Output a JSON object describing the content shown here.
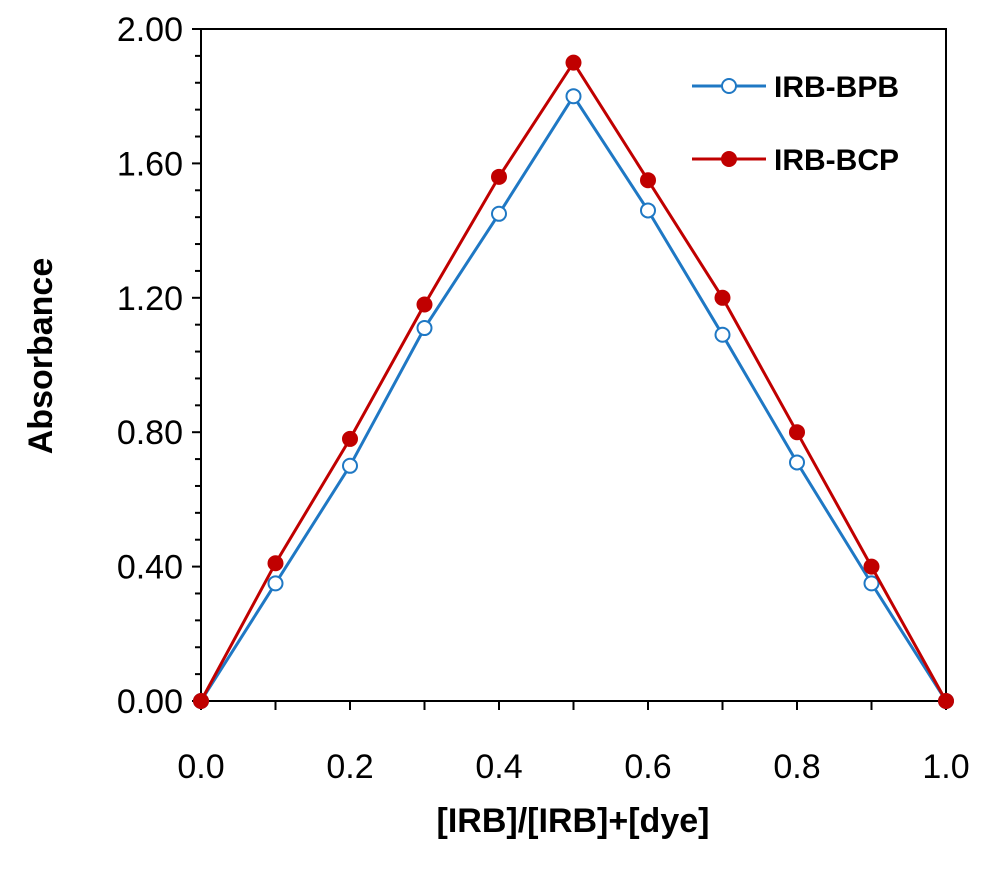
{
  "chart_data": {
    "type": "line",
    "title": "",
    "xlabel": "[IRB]/[IRB]+[dye]",
    "ylabel": "Absorbance",
    "xlim": [
      0,
      1
    ],
    "ylim": [
      0,
      2
    ],
    "x_ticks": [
      0.0,
      0.2,
      0.4,
      0.6,
      0.8,
      1.0
    ],
    "x_tick_labels": [
      "0.0",
      "0.2",
      "0.4",
      "0.6",
      "0.8",
      "1.0"
    ],
    "y_ticks": [
      0,
      0.4,
      0.8,
      1.2,
      1.6,
      2.0
    ],
    "y_tick_labels": [
      "0.00",
      "0.40",
      "0.80",
      "1.20",
      "1.60",
      "2.00"
    ],
    "grid": false,
    "legend_position": "top-right",
    "x": [
      0.0,
      0.1,
      0.2,
      0.3,
      0.4,
      0.5,
      0.6,
      0.7,
      0.8,
      0.9,
      1.0
    ],
    "series": [
      {
        "name": "IRB-BPB",
        "color": "#1f78c4",
        "marker": "open-circle",
        "values": [
          0.0,
          0.35,
          0.7,
          1.11,
          1.45,
          1.8,
          1.46,
          1.09,
          0.71,
          0.35,
          0.0
        ]
      },
      {
        "name": "IRB-BCP",
        "color": "#c00000",
        "marker": "filled-circle",
        "values": [
          0.0,
          0.41,
          0.78,
          1.18,
          1.56,
          1.9,
          1.55,
          1.2,
          0.8,
          0.4,
          0.0
        ]
      }
    ]
  }
}
